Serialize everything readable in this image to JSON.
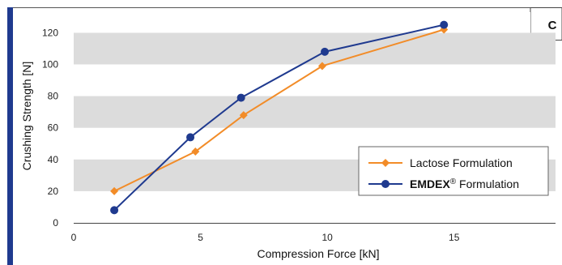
{
  "panel_letter": "C",
  "chart_data": {
    "type": "line",
    "xlabel": "Compression Force [kN]",
    "ylabel": "Crushing Strength [N]",
    "xlim": [
      0,
      19
    ],
    "ylim": [
      0,
      133
    ],
    "x_ticks": [
      0,
      5,
      10,
      15
    ],
    "y_ticks": [
      0,
      20,
      40,
      60,
      80,
      100,
      120
    ],
    "grid": "alternating horizontal bands",
    "legend_position": "bottom-right",
    "series": [
      {
        "name": "Lactose Formulation",
        "color": "#f28c28",
        "marker": "diamond",
        "x": [
          1.6,
          4.8,
          6.7,
          9.8,
          14.6
        ],
        "y": [
          20,
          45,
          68,
          99,
          122
        ]
      },
      {
        "name": "EMDEX® Formulation",
        "name_bold_part": "EMDEX",
        "name_sup": "®",
        "name_rest": " Formulation",
        "color": "#1f3a8f",
        "marker": "circle",
        "x": [
          1.6,
          4.6,
          6.6,
          9.9,
          14.6
        ],
        "y": [
          8,
          54,
          79,
          108,
          125
        ]
      }
    ]
  }
}
